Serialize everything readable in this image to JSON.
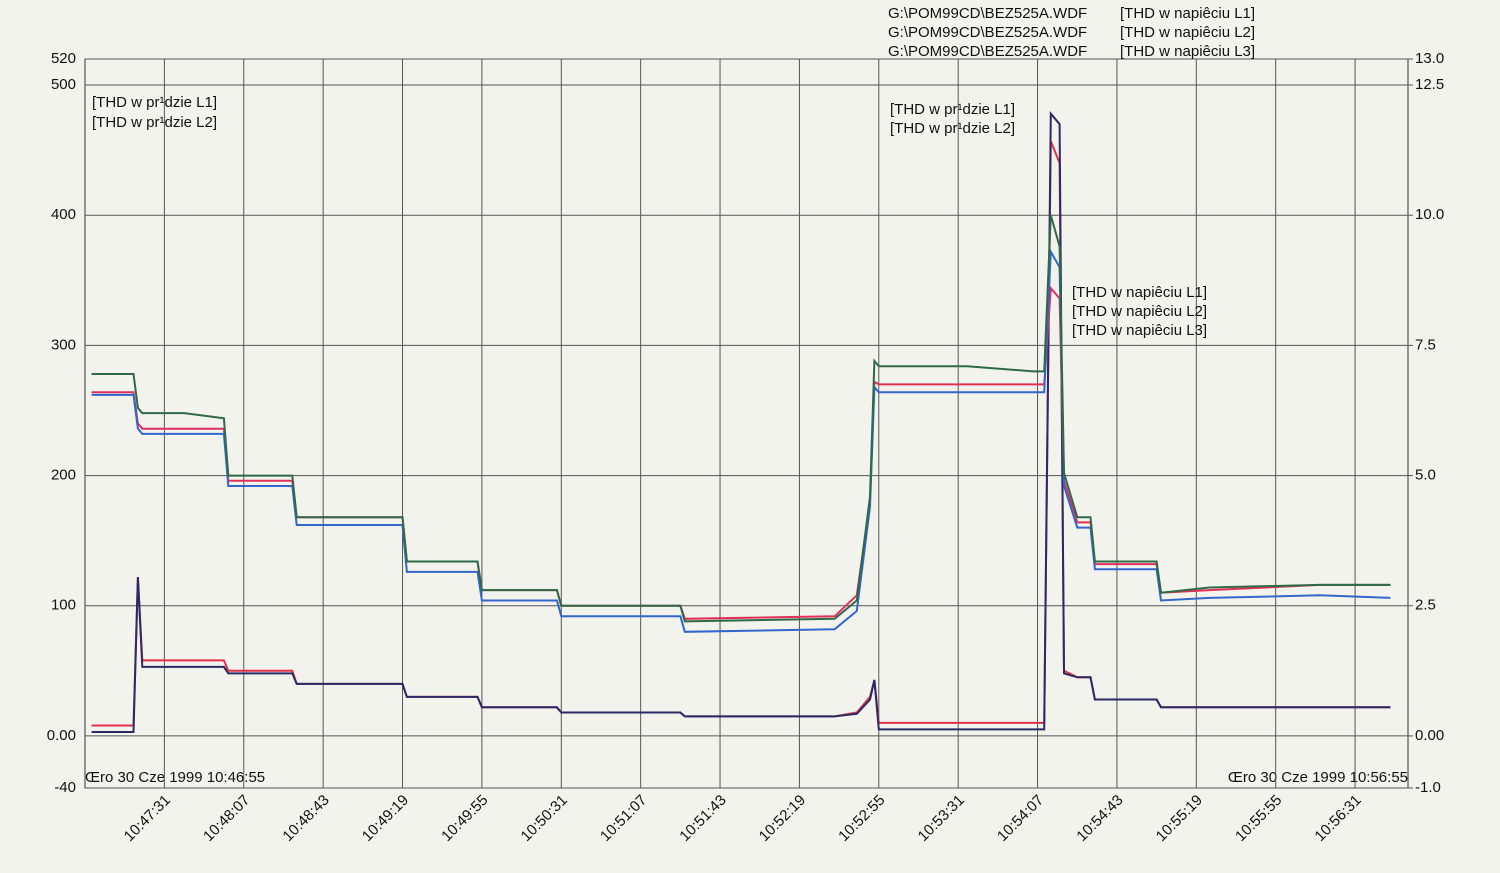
{
  "chart_data": {
    "type": "line",
    "annotations": {
      "file": "G:\\POM99CD\\BEZ525A.WDF",
      "start_label": "Œro 30 Cze 1999  10:46:55",
      "end_label": "Œro 30 Cze 1999  10:56:55"
    },
    "xlim": [
      "10:46:55",
      "10:56:55"
    ],
    "xticks": [
      "10:47:31",
      "10:48:07",
      "10:48:43",
      "10:49:19",
      "10:49:55",
      "10:50:31",
      "10:51:07",
      "10:51:43",
      "10:52:19",
      "10:52:55",
      "10:53:31",
      "10:54:07",
      "10:54:43",
      "10:55:19",
      "10:55:55",
      "10:56:31"
    ],
    "ylim": [
      -40,
      520
    ],
    "yticks": [
      -40,
      {
        "value": 0,
        "label": "0.00"
      },
      100,
      200,
      300,
      400,
      500,
      520
    ],
    "y2lim": [
      -1,
      13
    ],
    "y2ticks": [
      {
        "value": -1,
        "label": "-1.0"
      },
      {
        "value": 0,
        "label": "0.00"
      },
      2.5,
      {
        "value": 5,
        "label": "5.0"
      },
      7.5,
      {
        "value": 10,
        "label": "10.0"
      },
      12.5,
      {
        "value": 13,
        "label": "13.0"
      }
    ],
    "grid": true,
    "x": [
      "10:46:58",
      "10:47:17",
      "10:47:19",
      "10:47:21",
      "10:47:40",
      "10:47:58",
      "10:48:00",
      "10:48:15",
      "10:48:29",
      "10:48:31",
      "10:48:55",
      "10:49:19",
      "10:49:21",
      "10:49:53",
      "10:49:55",
      "10:50:29",
      "10:50:31",
      "10:51:25",
      "10:51:27",
      "10:52:35",
      "10:52:45",
      "10:52:51",
      "10:52:53",
      "10:52:55",
      "10:53:35",
      "10:54:05",
      "10:54:10",
      "10:54:13",
      "10:54:17",
      "10:54:19",
      "10:54:25",
      "10:54:31",
      "10:54:33",
      "10:55:01",
      "10:55:03",
      "10:55:25",
      "10:56:15",
      "10:56:47"
    ],
    "series": [
      {
        "name": "[THD w pr¹dzie L1]",
        "color": "#e0304a",
        "values": [
          8,
          8,
          122,
          58,
          58,
          58,
          50,
          50,
          50,
          40,
          40,
          40,
          30,
          30,
          22,
          22,
          18,
          18,
          15,
          15,
          18,
          30,
          43,
          10,
          10,
          10,
          10,
          457,
          440,
          50,
          45,
          45,
          28,
          28,
          22,
          22,
          22,
          22
        ]
      },
      {
        "name": "[THD w pr¹dzie L2]",
        "color": "#2a2a66",
        "values": [
          3,
          3,
          122,
          53,
          53,
          53,
          48,
          48,
          48,
          40,
          40,
          40,
          30,
          30,
          22,
          22,
          18,
          18,
          15,
          15,
          17,
          28,
          43,
          5,
          5,
          5,
          5,
          478,
          470,
          48,
          45,
          45,
          28,
          28,
          22,
          22,
          22,
          22
        ]
      },
      {
        "name": "[THD w napiêciu L1]",
        "color": "#e0305a",
        "axis": "y2",
        "values": [
          6.6,
          6.6,
          6.0,
          5.9,
          5.9,
          5.9,
          4.9,
          4.9,
          4.9,
          4.2,
          4.2,
          4.2,
          3.35,
          3.35,
          2.8,
          2.8,
          2.5,
          2.5,
          2.25,
          2.3,
          2.7,
          4.5,
          6.8,
          6.75,
          6.75,
          6.75,
          6.75,
          8.6,
          8.4,
          4.9,
          4.1,
          4.1,
          3.3,
          3.3,
          2.75,
          2.8,
          2.9,
          2.9
        ]
      },
      {
        "name": "[THD w napiêciu L2]",
        "color": "#3366cc",
        "axis": "y2",
        "values": [
          6.55,
          6.55,
          5.9,
          5.8,
          5.8,
          5.8,
          4.8,
          4.8,
          4.8,
          4.05,
          4.05,
          4.05,
          3.15,
          3.15,
          2.6,
          2.6,
          2.3,
          2.3,
          2.0,
          2.05,
          2.4,
          4.4,
          6.7,
          6.6,
          6.6,
          6.6,
          6.6,
          9.3,
          9.0,
          4.8,
          4.0,
          4.0,
          3.2,
          3.2,
          2.6,
          2.65,
          2.7,
          2.65
        ]
      },
      {
        "name": "[THD w napiêciu L3]",
        "color": "#2e6b45",
        "axis": "y2",
        "values": [
          6.95,
          6.95,
          6.3,
          6.2,
          6.2,
          6.1,
          5.0,
          5.0,
          5.0,
          4.2,
          4.2,
          4.2,
          3.35,
          3.35,
          2.8,
          2.8,
          2.5,
          2.5,
          2.2,
          2.25,
          2.6,
          4.6,
          7.2,
          7.1,
          7.1,
          7.0,
          7.0,
          10.0,
          9.4,
          5.05,
          4.2,
          4.2,
          3.35,
          3.35,
          2.75,
          2.85,
          2.9,
          2.9
        ]
      }
    ]
  }
}
